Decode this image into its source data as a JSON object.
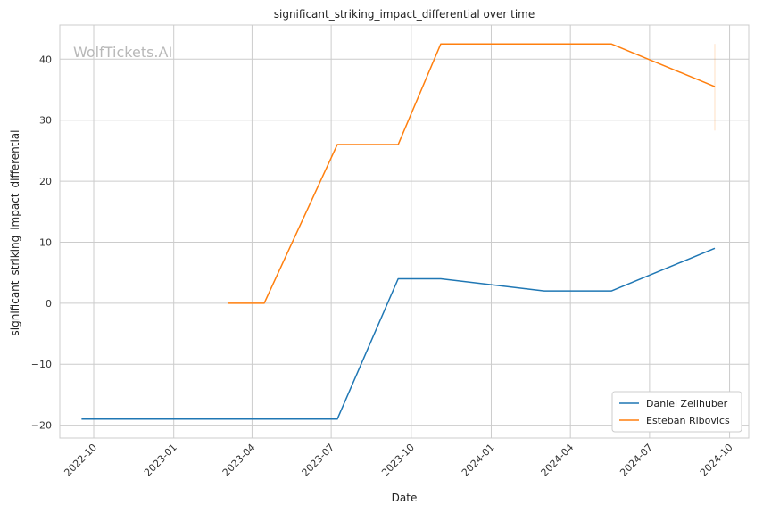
{
  "chart_data": {
    "type": "line",
    "title": "significant_striking_impact_differential over time",
    "xlabel": "Date",
    "ylabel": "significant_striking_impact_differential",
    "watermark": "WolfTickets.AI",
    "x_ticks": [
      "2022-10",
      "2023-01",
      "2023-04",
      "2023-07",
      "2023-10",
      "2024-01",
      "2024-04",
      "2024-07",
      "2024-10"
    ],
    "y_ticks": [
      -20,
      -10,
      0,
      10,
      20,
      30,
      40
    ],
    "xlim": [
      "2022-08-23",
      "2024-10-23"
    ],
    "ylim": [
      -22.1,
      45.6
    ],
    "grid": true,
    "legend_position": "bottom-right",
    "series": [
      {
        "name": "Daniel Zellhuber",
        "color": "#1f77b4",
        "points": [
          {
            "x": "2022-09-17",
            "y": -19
          },
          {
            "x": "2023-07-08",
            "y": -19
          },
          {
            "x": "2023-09-16",
            "y": 4
          },
          {
            "x": "2023-11-04",
            "y": 4
          },
          {
            "x": "2024-03-02",
            "y": 2
          },
          {
            "x": "2024-05-18",
            "y": 2
          },
          {
            "x": "2024-09-14",
            "y": 9
          }
        ]
      },
      {
        "name": "Esteban Ribovics",
        "color": "#ff7f0e",
        "points": [
          {
            "x": "2023-03-04",
            "y": 0
          },
          {
            "x": "2023-04-15",
            "y": 0
          },
          {
            "x": "2023-07-08",
            "y": 26
          },
          {
            "x": "2023-09-16",
            "y": 26
          },
          {
            "x": "2023-11-04",
            "y": 42.5
          },
          {
            "x": "2024-05-18",
            "y": 42.5
          },
          {
            "x": "2024-09-14",
            "y": 35.5
          }
        ],
        "error_band": {
          "x": "2024-09-14",
          "low": 28.3,
          "high": 42.5
        }
      }
    ]
  }
}
